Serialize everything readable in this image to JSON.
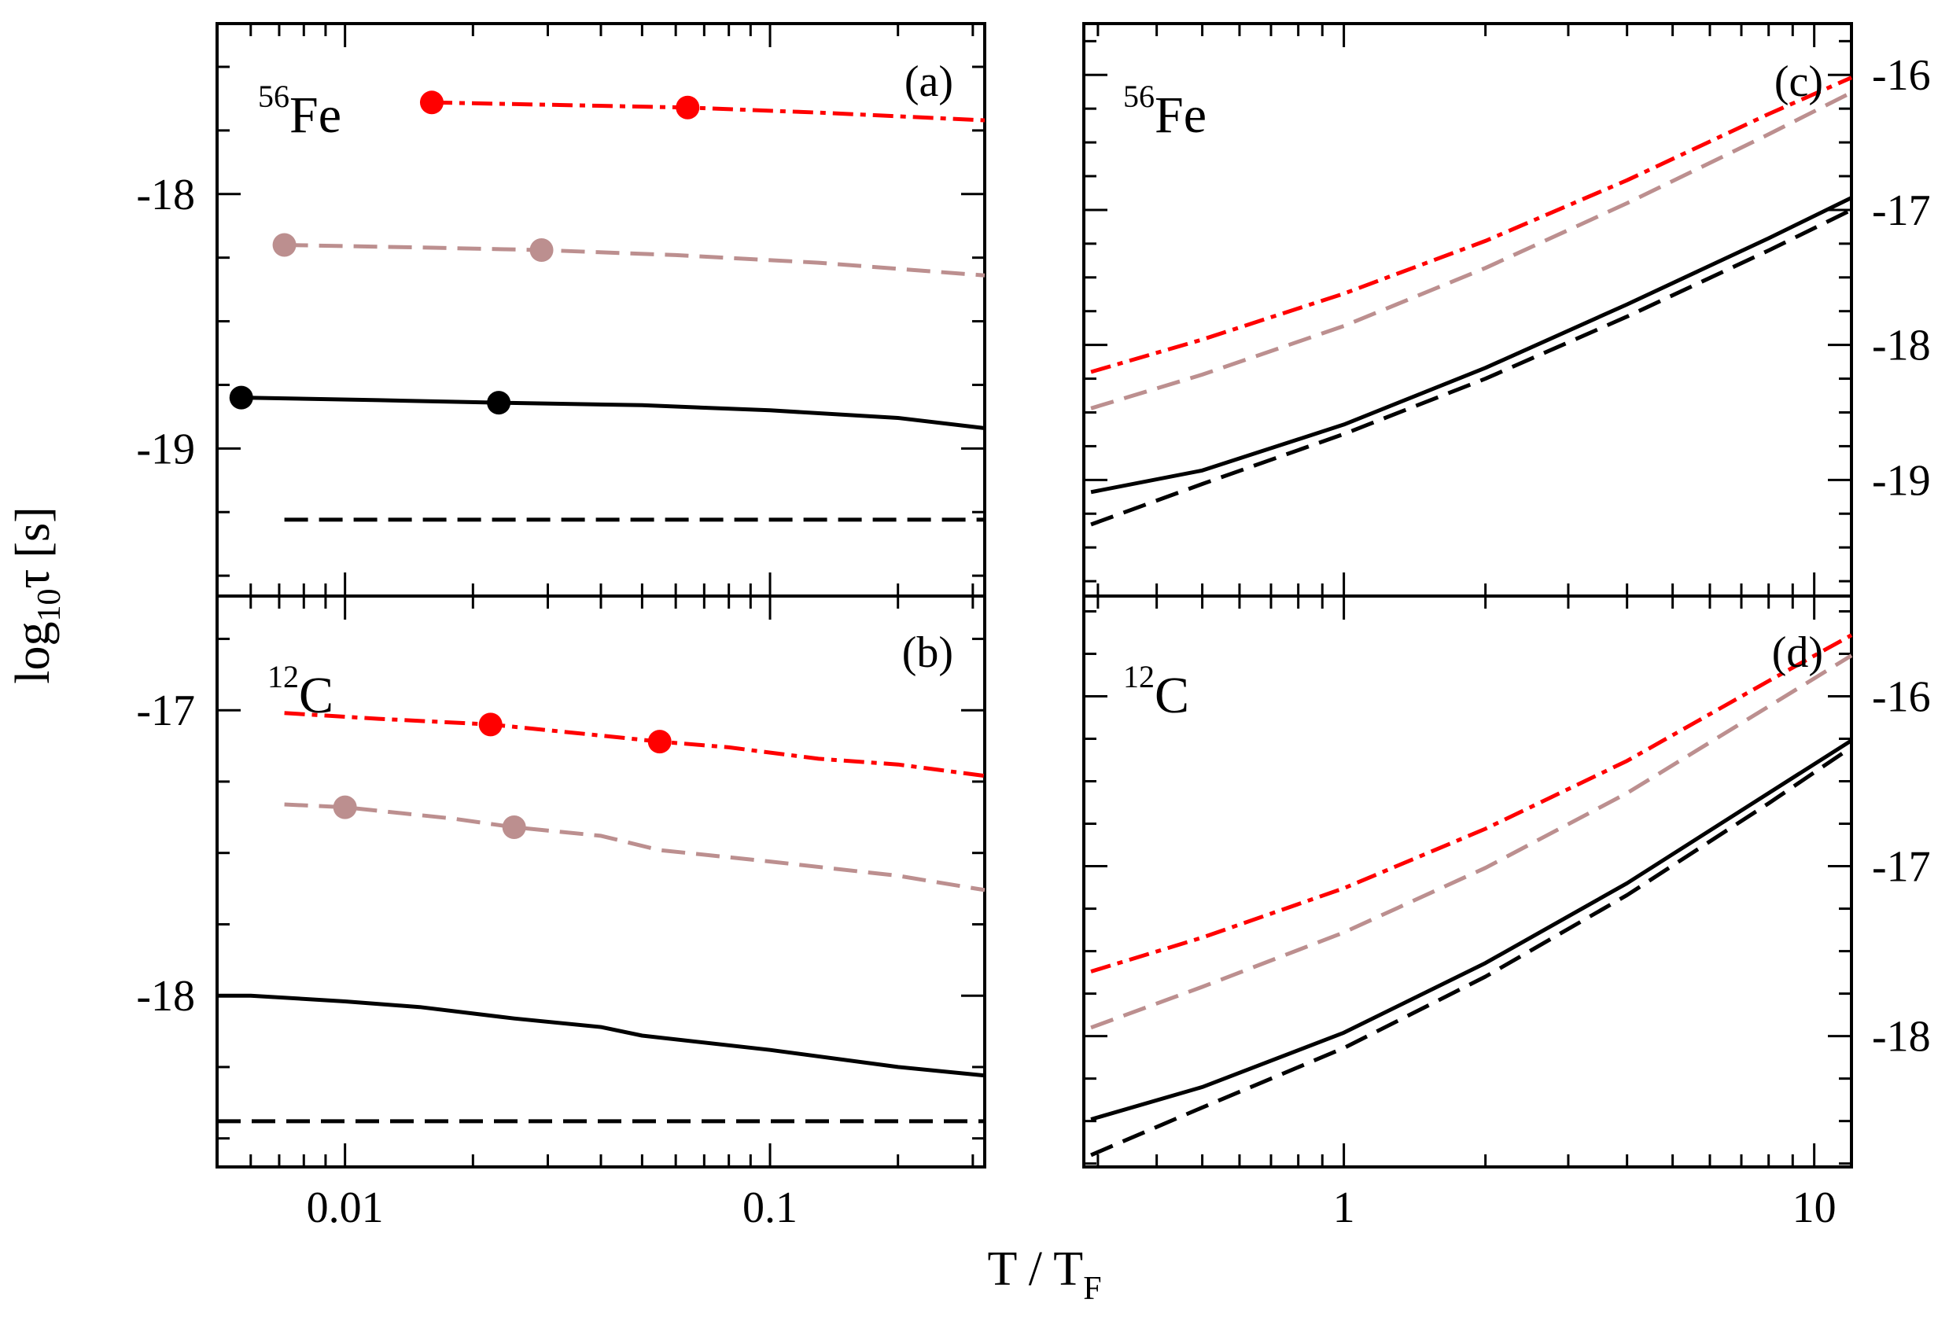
{
  "figure": {
    "ylabel": {
      "main": "log",
      "sub": "10",
      "symbol": "τ",
      "unit": "[s]"
    },
    "xlabel": {
      "main": "T / T",
      "sub": "F"
    }
  },
  "chart_data": [
    {
      "id": "a",
      "type": "line",
      "panel_label": "(a)",
      "nucleus": {
        "mass": "56",
        "symbol": "Fe"
      },
      "x_scale": "log",
      "xlim": [
        0.005,
        0.32
      ],
      "ylim": [
        -19.58,
        -17.33
      ],
      "y_ticks_labeled": [
        "-18",
        "-19"
      ],
      "y_tick_values": [
        -18,
        -19
      ],
      "x_tick_labels": [],
      "x_tick_values": [
        0.01,
        0.1
      ],
      "series": [
        {
          "name": "red-dashdot",
          "color": "#ff0000",
          "style": "dashdot",
          "x": [
            0.016,
            0.032,
            0.064,
            0.13,
            0.32
          ],
          "y": [
            -17.64,
            -17.65,
            -17.66,
            -17.68,
            -17.71
          ]
        },
        {
          "name": "brown-dashed",
          "color": "#bc8f8f",
          "style": "dashed",
          "x": [
            0.0072,
            0.015,
            0.029,
            0.06,
            0.13,
            0.32
          ],
          "y": [
            -18.2,
            -18.21,
            -18.22,
            -18.24,
            -18.27,
            -18.32
          ]
        },
        {
          "name": "black-solid",
          "color": "#000000",
          "style": "solid",
          "x": [
            0.0057,
            0.012,
            0.023,
            0.05,
            0.1,
            0.2,
            0.32
          ],
          "y": [
            -18.8,
            -18.81,
            -18.82,
            -18.83,
            -18.85,
            -18.88,
            -18.92
          ]
        },
        {
          "name": "black-dashed",
          "color": "#000000",
          "style": "dashed",
          "x": [
            0.0072,
            0.32
          ],
          "y": [
            -19.28,
            -19.28
          ]
        }
      ],
      "markers": [
        {
          "series": "red-dashdot",
          "color": "#ff0000",
          "x": [
            0.016,
            0.064
          ],
          "y": [
            -17.64,
            -17.66
          ]
        },
        {
          "series": "brown-dashed",
          "color": "#bc8f8f",
          "x": [
            0.0072,
            0.029
          ],
          "y": [
            -18.2,
            -18.22
          ]
        },
        {
          "series": "black-solid",
          "color": "#000000",
          "x": [
            0.0057,
            0.023
          ],
          "y": [
            -18.8,
            -18.82
          ]
        }
      ]
    },
    {
      "id": "b",
      "type": "line",
      "panel_label": "(b)",
      "nucleus": {
        "mass": "12",
        "symbol": "C"
      },
      "x_scale": "log",
      "xlim": [
        0.005,
        0.32
      ],
      "ylim": [
        -18.6,
        -16.6
      ],
      "y_ticks_labeled": [
        "-17",
        "-18"
      ],
      "y_tick_values": [
        -17,
        -18
      ],
      "x_tick_labels": [
        "0.01",
        "0.1"
      ],
      "x_tick_values": [
        0.01,
        0.1
      ],
      "series": [
        {
          "name": "red-dashdot",
          "color": "#ff0000",
          "style": "dashdot",
          "x": [
            0.0072,
            0.012,
            0.022,
            0.035,
            0.055,
            0.08,
            0.13,
            0.2,
            0.32
          ],
          "y": [
            -17.01,
            -17.03,
            -17.05,
            -17.08,
            -17.11,
            -17.13,
            -17.17,
            -17.19,
            -17.23
          ]
        },
        {
          "name": "brown-dashed",
          "color": "#bc8f8f",
          "style": "dashed",
          "x": [
            0.0072,
            0.01,
            0.018,
            0.025,
            0.04,
            0.055,
            0.1,
            0.2,
            0.32
          ],
          "y": [
            -17.33,
            -17.34,
            -17.38,
            -17.41,
            -17.44,
            -17.49,
            -17.53,
            -17.58,
            -17.63
          ]
        },
        {
          "name": "black-solid",
          "color": "#000000",
          "style": "solid",
          "x": [
            0.005,
            0.006,
            0.01,
            0.015,
            0.025,
            0.04,
            0.05,
            0.1,
            0.2,
            0.32
          ],
          "y": [
            -18.0,
            -18.0,
            -18.02,
            -18.04,
            -18.08,
            -18.11,
            -18.14,
            -18.19,
            -18.25,
            -18.28
          ]
        },
        {
          "name": "black-dashed",
          "color": "#000000",
          "style": "dashed",
          "x": [
            0.005,
            0.32
          ],
          "y": [
            -18.44,
            -18.44
          ]
        }
      ],
      "markers": [
        {
          "series": "red-dashdot",
          "color": "#ff0000",
          "x": [
            0.022,
            0.055
          ],
          "y": [
            -17.05,
            -17.11
          ]
        },
        {
          "series": "brown-dashed",
          "color": "#bc8f8f",
          "x": [
            0.01,
            0.025
          ],
          "y": [
            -17.34,
            -17.41
          ]
        }
      ]
    },
    {
      "id": "c",
      "type": "line",
      "panel_label": "(c)",
      "nucleus": {
        "mass": "56",
        "symbol": "Fe"
      },
      "x_scale": "log",
      "xlim": [
        0.28,
        12.0
      ],
      "ylim": [
        -19.86,
        -15.62
      ],
      "y_ticks_labeled": [
        "-16",
        "-17",
        "-18",
        "-19"
      ],
      "y_tick_values": [
        -16,
        -17,
        -18,
        -19
      ],
      "x_tick_labels": [],
      "x_tick_values": [
        1,
        10
      ],
      "series": [
        {
          "name": "red-dashdot",
          "color": "#ff0000",
          "style": "dashdot",
          "x": [
            0.29,
            0.5,
            1,
            2,
            4,
            8,
            12
          ],
          "y": [
            -18.2,
            -17.96,
            -17.62,
            -17.23,
            -16.78,
            -16.29,
            -16.02
          ]
        },
        {
          "name": "brown-dashed",
          "color": "#bc8f8f",
          "style": "dashed",
          "x": [
            0.29,
            0.5,
            1,
            2,
            4,
            8,
            12
          ],
          "y": [
            -18.47,
            -18.22,
            -17.86,
            -17.43,
            -16.95,
            -16.44,
            -16.13
          ]
        },
        {
          "name": "black-solid",
          "color": "#000000",
          "style": "solid",
          "x": [
            0.29,
            0.5,
            1,
            2,
            4,
            8,
            12
          ],
          "y": [
            -19.09,
            -18.93,
            -18.59,
            -18.17,
            -17.7,
            -17.21,
            -16.91
          ]
        },
        {
          "name": "black-dashed",
          "color": "#000000",
          "style": "dashed",
          "x": [
            0.29,
            0.5,
            1,
            2,
            4,
            8,
            12
          ],
          "y": [
            -19.33,
            -19.03,
            -18.66,
            -18.25,
            -17.79,
            -17.3,
            -17.0
          ]
        }
      ]
    },
    {
      "id": "d",
      "type": "line",
      "panel_label": "(d)",
      "nucleus": {
        "mass": "12",
        "symbol": "C"
      },
      "x_scale": "log",
      "xlim": [
        0.28,
        12.0
      ],
      "ylim": [
        -18.77,
        -15.41
      ],
      "y_ticks_labeled": [
        "-16",
        "-17",
        "-18"
      ],
      "y_tick_values": [
        -16,
        -17,
        -18
      ],
      "x_tick_labels": [
        "1",
        "10"
      ],
      "x_tick_values": [
        1,
        10
      ],
      "series": [
        {
          "name": "red-dashdot",
          "color": "#ff0000",
          "style": "dashdot",
          "x": [
            0.29,
            0.5,
            1,
            2,
            4,
            8,
            12
          ],
          "y": [
            -17.62,
            -17.42,
            -17.13,
            -16.78,
            -16.38,
            -15.91,
            -15.64
          ]
        },
        {
          "name": "brown-dashed",
          "color": "#bc8f8f",
          "style": "dashed",
          "x": [
            0.29,
            0.5,
            1,
            2,
            4,
            8,
            12
          ],
          "y": [
            -17.95,
            -17.71,
            -17.39,
            -17.01,
            -16.57,
            -16.06,
            -15.76
          ]
        },
        {
          "name": "black-solid",
          "color": "#000000",
          "style": "solid",
          "x": [
            0.29,
            0.5,
            1,
            2,
            4,
            8,
            12
          ],
          "y": [
            -18.49,
            -18.3,
            -17.98,
            -17.57,
            -17.1,
            -16.57,
            -16.26
          ]
        },
        {
          "name": "black-dashed",
          "color": "#000000",
          "style": "dashed",
          "x": [
            0.29,
            0.5,
            1,
            2,
            4,
            8,
            12
          ],
          "y": [
            -18.7,
            -18.42,
            -18.07,
            -17.65,
            -17.17,
            -16.63,
            -16.3
          ]
        }
      ]
    }
  ]
}
